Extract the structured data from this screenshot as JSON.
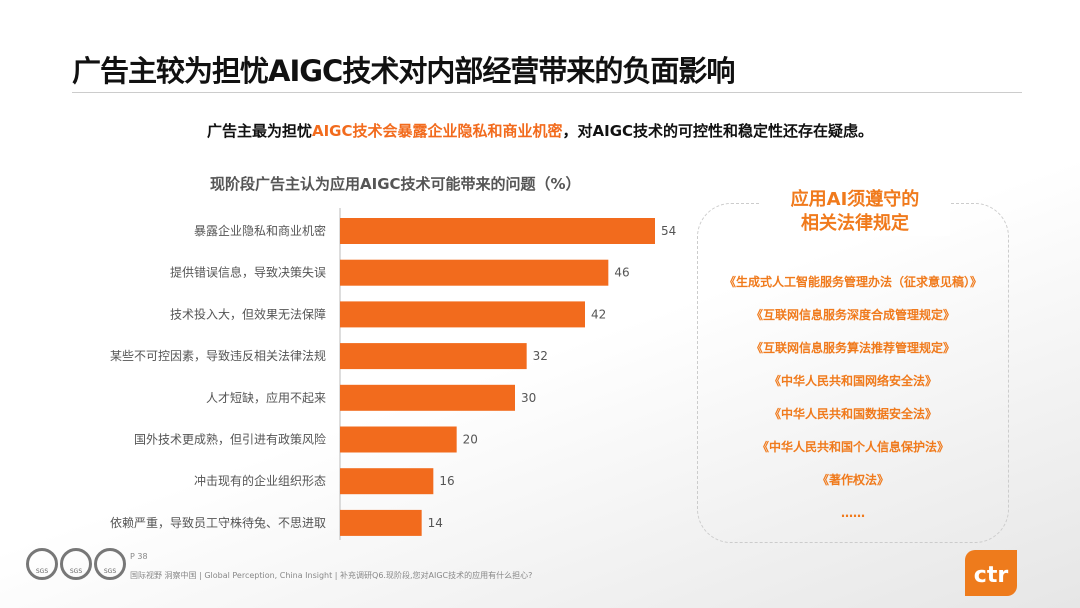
{
  "header": {
    "title": "广告主较为担忧AIGC技术对内部经营带来的负面影响"
  },
  "subtitle": {
    "pre": "广告主最为担忧",
    "highlight": "AIGC技术会暴露企业隐私和商业机密",
    "post": "，对AIGC技术的可控性和稳定性还存在疑虑。"
  },
  "chart_data": {
    "type": "bar",
    "orientation": "horizontal",
    "title": "现阶段广告主认为应用AIGC技术可能带来的问题（%）",
    "categories": [
      "暴露企业隐私和商业机密",
      "提供错误信息，导致决策失误",
      "技术投入大，但效果无法保障",
      "某些不可控因素，导致违反相关法律法规",
      "人才短缺，应用不起来",
      "国外技术更成熟，但引进有政策风险",
      "冲击现有的企业组织形态",
      "依赖严重，导致员工守株待兔、不思进取"
    ],
    "values": [
      54,
      46,
      42,
      32,
      30,
      20,
      16,
      14
    ],
    "color": "#f26b1d",
    "xlim": [
      0,
      60
    ]
  },
  "panel": {
    "title_line1": "应用AI须遵守的",
    "title_line2": "相关法律规定",
    "laws": [
      "《生成式人工智能服务管理办法（征求意见稿）》",
      "《互联网信息服务深度合成管理规定》",
      "《互联网信息服务算法推荐管理规定》",
      "《中华人民共和国网络安全法》",
      "《中华人民共和国数据安全法》",
      "《中华人民共和国个人信息保护法》",
      "《著作权法》",
      "……"
    ]
  },
  "footer": {
    "page": "P 38",
    "source": "国际视野  洞察中国 | Global Perception, China Insight | 补充调研Q6.现阶段,您对AIGC技术的应用有什么担心?",
    "logo_text": "ctr",
    "sgs_text": "SGS"
  }
}
